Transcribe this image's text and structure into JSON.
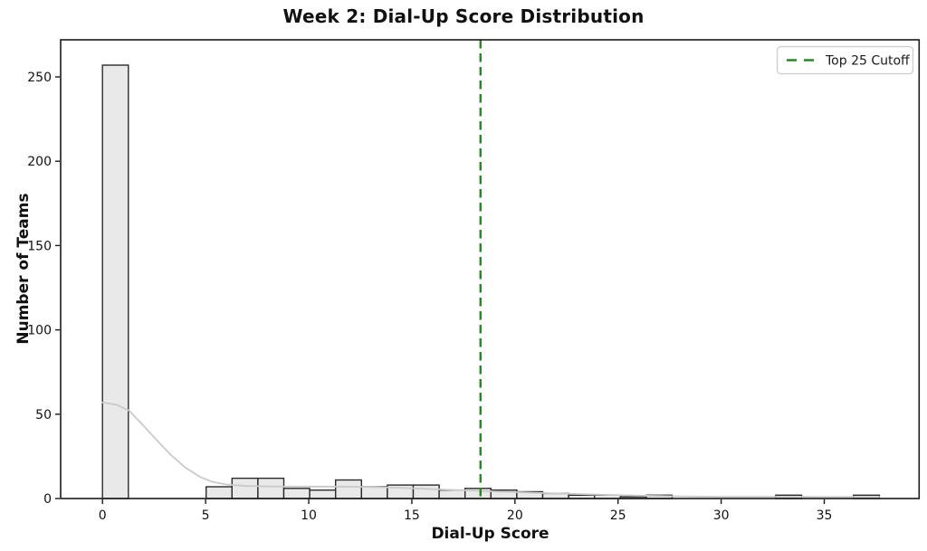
{
  "chart_data": {
    "type": "bar",
    "variant": "histogram_with_kde",
    "title": "Week 2: Dial-Up Score Distribution",
    "xlabel": "Dial-Up Score",
    "ylabel": "Number of Teams",
    "xlim": [
      -2.03,
      39.6
    ],
    "ylim": [
      0,
      272
    ],
    "xticks": [
      0,
      5,
      10,
      15,
      20,
      25,
      30,
      35
    ],
    "yticks": [
      0,
      50,
      100,
      150,
      200,
      250
    ],
    "grid": false,
    "bins": {
      "start": 0,
      "width": 1.2557,
      "counts": [
        257,
        0,
        0,
        0,
        7,
        12,
        12,
        6,
        5,
        11,
        7,
        8,
        8,
        5,
        6,
        5,
        4,
        3,
        2,
        2,
        1,
        2,
        0,
        0,
        0,
        0,
        2,
        0,
        0,
        2
      ]
    },
    "kde_curve": [
      [
        0,
        57
      ],
      [
        0.7,
        55.5
      ],
      [
        1.3,
        52
      ],
      [
        2.0,
        43
      ],
      [
        2.6,
        35
      ],
      [
        3.3,
        26
      ],
      [
        4.0,
        18.5
      ],
      [
        4.7,
        13
      ],
      [
        5.3,
        10
      ],
      [
        6.0,
        8.3
      ],
      [
        7.0,
        7.4
      ],
      [
        8.0,
        7.2
      ],
      [
        9.0,
        7.1
      ],
      [
        10.0,
        7.1
      ],
      [
        11.0,
        7.1
      ],
      [
        12.0,
        7.0
      ],
      [
        13.0,
        6.8
      ],
      [
        14.0,
        6.5
      ],
      [
        15.0,
        6.1
      ],
      [
        16.0,
        5.6
      ],
      [
        17.0,
        5.1
      ],
      [
        18.0,
        4.7
      ],
      [
        19.0,
        4.2
      ],
      [
        20.0,
        3.8
      ],
      [
        21.0,
        3.4
      ],
      [
        22.0,
        3.0
      ],
      [
        23.0,
        2.7
      ],
      [
        24.0,
        2.3
      ],
      [
        25.0,
        2.0
      ],
      [
        26.0,
        1.7
      ],
      [
        27.0,
        1.5
      ],
      [
        28.0,
        1.3
      ],
      [
        29.0,
        1.1
      ],
      [
        30.0,
        1.0
      ],
      [
        31.0,
        1.0
      ],
      [
        32.0,
        1.0
      ],
      [
        33.0,
        1.0
      ],
      [
        34.0,
        1.0
      ],
      [
        35.0,
        0.9
      ],
      [
        36.0,
        0.9
      ],
      [
        37.0,
        0.9
      ],
      [
        37.67,
        0.9
      ]
    ],
    "cutoff_line": {
      "x": 18.33,
      "style": "dashed"
    },
    "legend": {
      "position": "upper-right",
      "entries": [
        {
          "label": "Top 25 Cutoff",
          "line_style": "dashed",
          "color": "#228B22"
        }
      ]
    },
    "colors": {
      "bar_fill": "#e9e9e9",
      "bar_edge": "#2b2b2b",
      "kde_line": "#c9c9c9",
      "cutoff_green": "#228B22",
      "spine": "#1a1a1a",
      "legend_border": "#cccccc",
      "text": "#111111"
    }
  }
}
